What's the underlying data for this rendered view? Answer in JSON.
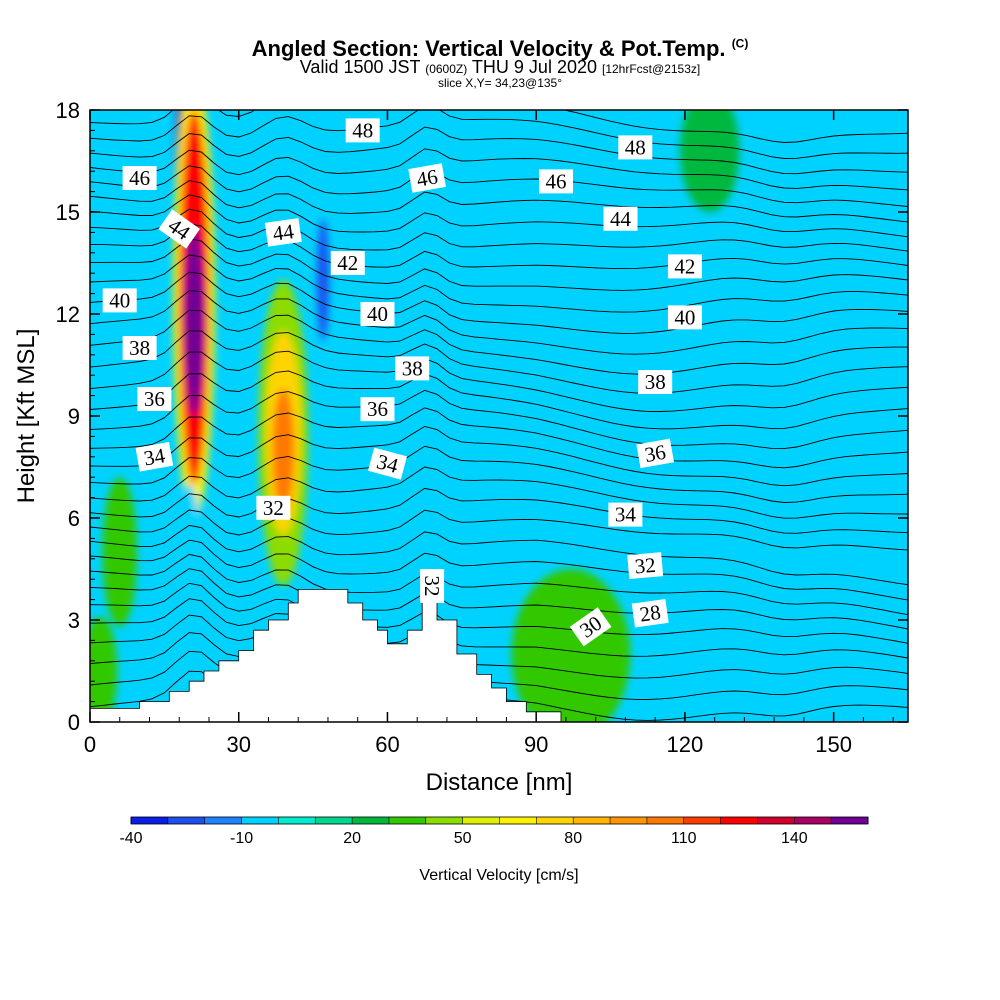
{
  "header": {
    "title_main": "Angled Section: Vertical Velocity & Pot.Temp.",
    "title_suffix": "(C)",
    "valid_prefix": "Valid 1500 JST",
    "valid_utc": "(0600Z)",
    "valid_date": "THU 9 Jul 2020",
    "valid_fcst": "[12hrFcst@2153z]",
    "slice": "slice X,Y= 34,23@135°"
  },
  "chart_data": {
    "type": "contour-section",
    "xlabel": "Distance [nm]",
    "ylabel": "Height [Kft MSL]",
    "xlim": [
      0,
      165
    ],
    "ylim": [
      0,
      18
    ],
    "xticks": [
      "0",
      "30",
      "60",
      "90",
      "120",
      "150"
    ],
    "yticks": [
      "0",
      "3",
      "6",
      "9",
      "12",
      "15",
      "18"
    ],
    "terrain": [
      [
        0,
        0.4
      ],
      [
        10,
        0.4
      ],
      [
        10,
        0.6
      ],
      [
        16,
        0.6
      ],
      [
        16,
        0.9
      ],
      [
        20,
        0.9
      ],
      [
        20,
        1.2
      ],
      [
        23,
        1.2
      ],
      [
        23,
        1.5
      ],
      [
        26,
        1.5
      ],
      [
        26,
        1.8
      ],
      [
        30,
        1.8
      ],
      [
        30,
        2.1
      ],
      [
        33,
        2.1
      ],
      [
        33,
        2.7
      ],
      [
        36,
        2.7
      ],
      [
        36,
        3.0
      ],
      [
        40,
        3.0
      ],
      [
        40,
        3.5
      ],
      [
        42,
        3.5
      ],
      [
        42,
        3.9
      ],
      [
        52,
        3.9
      ],
      [
        52,
        3.5
      ],
      [
        55,
        3.5
      ],
      [
        55,
        3.0
      ],
      [
        58,
        3.0
      ],
      [
        58,
        2.7
      ],
      [
        60,
        2.7
      ],
      [
        60,
        2.3
      ],
      [
        64,
        2.3
      ],
      [
        64,
        2.7
      ],
      [
        67,
        2.7
      ],
      [
        67,
        3.6
      ],
      [
        70,
        3.6
      ],
      [
        70,
        3.0
      ],
      [
        74,
        3.0
      ],
      [
        74,
        2.0
      ],
      [
        78,
        2.0
      ],
      [
        78,
        1.4
      ],
      [
        81,
        1.4
      ],
      [
        81,
        1.0
      ],
      [
        84,
        1.0
      ],
      [
        84,
        0.6
      ],
      [
        88,
        0.6
      ],
      [
        88,
        0.3
      ],
      [
        95,
        0.3
      ]
    ],
    "wwind_cells": [
      {
        "x": 6,
        "y": 5.0,
        "rx": 3.5,
        "ry": 2.2,
        "v": 20
      },
      {
        "x": 2,
        "y": 1.5,
        "rx": 3.5,
        "ry": 1.6,
        "v": 20
      },
      {
        "x": 20,
        "y": 16.5,
        "rx": 2.8,
        "ry": 3.2,
        "v": 140
      },
      {
        "x": 21,
        "y": 12.5,
        "rx": 4.2,
        "ry": 6.5,
        "v": 50
      },
      {
        "x": 21,
        "y": 12.5,
        "rx": 3.0,
        "ry": 5.5,
        "v": 110
      },
      {
        "x": 21,
        "y": 11.8,
        "rx": 2.0,
        "ry": 2.8,
        "v": 140
      },
      {
        "x": 39,
        "y": 8.5,
        "rx": 5.0,
        "ry": 4.5,
        "v": 30
      },
      {
        "x": 39,
        "y": 8.5,
        "rx": 3.6,
        "ry": 3.0,
        "v": 60
      },
      {
        "x": 39,
        "y": 8.0,
        "rx": 2.2,
        "ry": 1.8,
        "v": 90
      },
      {
        "x": 133,
        "y": 7.5,
        "rx": 8.0,
        "ry": 5.5,
        "v": -20
      },
      {
        "x": 112,
        "y": 10.5,
        "rx": 20.0,
        "ry": 3.2,
        "v": -20
      },
      {
        "x": 64,
        "y": 13.8,
        "rx": 10.0,
        "ry": 2.5,
        "v": -20
      },
      {
        "x": 20,
        "y": 4.0,
        "rx": 2.6,
        "ry": 3.0,
        "v": -20
      },
      {
        "x": 47,
        "y": 13.0,
        "rx": 1.2,
        "ry": 1.8,
        "v": -40
      },
      {
        "x": 97,
        "y": 2.0,
        "rx": 12.0,
        "ry": 2.5,
        "v": 20
      },
      {
        "x": 125,
        "y": 16.8,
        "rx": 6.0,
        "ry": 1.8,
        "v": 10
      }
    ],
    "theta_labels": [
      {
        "text": "48",
        "x": 55,
        "y": 17.4,
        "rot": 0
      },
      {
        "text": "48",
        "x": 110,
        "y": 16.9,
        "rot": 0
      },
      {
        "text": "46",
        "x": 10,
        "y": 16.0,
        "rot": 0
      },
      {
        "text": "46",
        "x": 68,
        "y": 16.0,
        "rot": -10
      },
      {
        "text": "46",
        "x": 94,
        "y": 15.9,
        "rot": 0
      },
      {
        "text": "44",
        "x": 18,
        "y": 14.5,
        "rot": 35
      },
      {
        "text": "44",
        "x": 39,
        "y": 14.4,
        "rot": -8
      },
      {
        "text": "44",
        "x": 107,
        "y": 14.8,
        "rot": 0
      },
      {
        "text": "42",
        "x": 52,
        "y": 13.5,
        "rot": 0
      },
      {
        "text": "42",
        "x": 120,
        "y": 13.4,
        "rot": 0
      },
      {
        "text": "40",
        "x": 6,
        "y": 12.4,
        "rot": 0
      },
      {
        "text": "40",
        "x": 58,
        "y": 12.0,
        "rot": 0
      },
      {
        "text": "40",
        "x": 120,
        "y": 11.9,
        "rot": 0
      },
      {
        "text": "38",
        "x": 10,
        "y": 11.0,
        "rot": 0
      },
      {
        "text": "38",
        "x": 65,
        "y": 10.4,
        "rot": 0
      },
      {
        "text": "38",
        "x": 114,
        "y": 10.0,
        "rot": 0
      },
      {
        "text": "36",
        "x": 13,
        "y": 9.5,
        "rot": 0
      },
      {
        "text": "36",
        "x": 58,
        "y": 9.2,
        "rot": 0
      },
      {
        "text": "36",
        "x": 114,
        "y": 7.9,
        "rot": -10
      },
      {
        "text": "34",
        "x": 13,
        "y": 7.8,
        "rot": -10
      },
      {
        "text": "34",
        "x": 60,
        "y": 7.6,
        "rot": 15
      },
      {
        "text": "34",
        "x": 108,
        "y": 6.1,
        "rot": 0
      },
      {
        "text": "32",
        "x": 37,
        "y": 6.3,
        "rot": 0
      },
      {
        "text": "32",
        "x": 69,
        "y": 4.0,
        "rot": 90
      },
      {
        "text": "32",
        "x": 112,
        "y": 4.6,
        "rot": -5
      },
      {
        "text": "30",
        "x": 101,
        "y": 2.8,
        "rot": -35
      },
      {
        "text": "28",
        "x": 113,
        "y": 3.2,
        "rot": -8
      }
    ],
    "colorbar": {
      "colors": [
        "#0a1ee8",
        "#1e50f0",
        "#1e82ff",
        "#00d2ff",
        "#00ecd0",
        "#00d690",
        "#00b83c",
        "#32c800",
        "#8cdc00",
        "#dcf000",
        "#fff200",
        "#ffd400",
        "#ffb400",
        "#ff9600",
        "#ff7800",
        "#ff3c00",
        "#ff0000",
        "#d2002d",
        "#aa0064",
        "#6e0096"
      ],
      "tick_labels": [
        "-40",
        "-10",
        "20",
        "50",
        "80",
        "110",
        "140"
      ],
      "label": "Vertical Velocity [cm/s]"
    }
  }
}
